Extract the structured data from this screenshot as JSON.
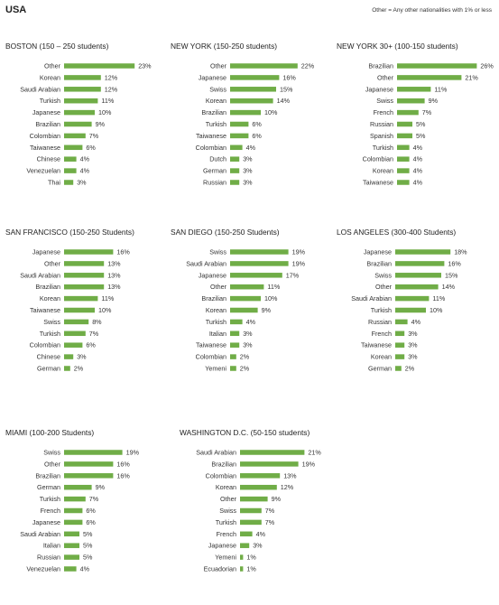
{
  "page": {
    "title": "USA",
    "note": "Other = Any other nationalities with 1% or less"
  },
  "chart_data": [
    {
      "type": "bar",
      "orientation": "horizontal",
      "title": "BOSTON (150 – 250 students)",
      "categories": [
        "Other",
        "Korean",
        "Saudi Arabian",
        "Turkish",
        "Japanese",
        "Brazilian",
        "Colombian",
        "Taiwanese",
        "Chinese",
        "Venezuelan",
        "Thai"
      ],
      "values": [
        23,
        12,
        12,
        11,
        10,
        9,
        7,
        6,
        4,
        4,
        3
      ],
      "unit": "%",
      "color": "#70ad47"
    },
    {
      "type": "bar",
      "orientation": "horizontal",
      "title": "NEW YORK (150-250 students)",
      "categories": [
        "Other",
        "Japanese",
        "Swiss",
        "Korean",
        "Brazilian",
        "Turkish",
        "Taiwanese",
        "Colombian",
        "Dutch",
        "German",
        "Russian"
      ],
      "values": [
        22,
        16,
        15,
        14,
        10,
        6,
        6,
        4,
        3,
        3,
        3
      ],
      "unit": "%",
      "color": "#70ad47"
    },
    {
      "type": "bar",
      "orientation": "horizontal",
      "title": "NEW YORK 30+ (100-150 students)",
      "categories": [
        "Brazilian",
        "Other",
        "Japanese",
        "Swiss",
        "French",
        "Russian",
        "Spanish",
        "Turkish",
        "Colombian",
        "Korean",
        "Taiwanese"
      ],
      "values": [
        26,
        21,
        11,
        9,
        7,
        5,
        5,
        4,
        4,
        4,
        4
      ],
      "unit": "%",
      "color": "#70ad47"
    },
    {
      "type": "bar",
      "orientation": "horizontal",
      "title": "SAN FRANCISCO (150-250 Students)",
      "categories": [
        "Japanese",
        "Other",
        "Saudi Arabian",
        "Brazilian",
        "Korean",
        "Taiwanese",
        "Swiss",
        "Turkish",
        "Colombian",
        "Chinese",
        "German"
      ],
      "values": [
        16,
        13,
        13,
        13,
        11,
        10,
        8,
        7,
        6,
        3,
        2
      ],
      "unit": "%",
      "color": "#70ad47"
    },
    {
      "type": "bar",
      "orientation": "horizontal",
      "title": "SAN DIEGO (150-250 Students)",
      "categories": [
        "Swiss",
        "Saudi Arabian",
        "Japanese",
        "Other",
        "Brazilian",
        "Korean",
        "Turkish",
        "Italian",
        "Taiwanese",
        "Colombian",
        "Yemeni"
      ],
      "values": [
        19,
        19,
        17,
        11,
        10,
        9,
        4,
        3,
        3,
        2,
        2
      ],
      "unit": "%",
      "color": "#70ad47"
    },
    {
      "type": "bar",
      "orientation": "horizontal",
      "title": "LOS ANGELES (300-400 Students)",
      "categories": [
        "Japanese",
        "Brazilian",
        "Swiss",
        "Other",
        "Saudi Arabian",
        "Turkish",
        "Russian",
        "French",
        "Taiwanese",
        "Korean",
        "German"
      ],
      "values": [
        18,
        16,
        15,
        14,
        11,
        10,
        4,
        3,
        3,
        3,
        2
      ],
      "unit": "%",
      "color": "#70ad47"
    },
    {
      "type": "bar",
      "orientation": "horizontal",
      "title": "MIAMI (100-200 Students)",
      "categories": [
        "Swiss",
        "Other",
        "Brazilian",
        "German",
        "Turkish",
        "French",
        "Japanese",
        "Saudi Arabian",
        "Italian",
        "Russian",
        "Venezuelan"
      ],
      "values": [
        19,
        16,
        16,
        9,
        7,
        6,
        6,
        5,
        5,
        5,
        4
      ],
      "unit": "%",
      "color": "#70ad47"
    },
    {
      "type": "bar",
      "orientation": "horizontal",
      "title": "WASHINGTON D.C. (50-150 students)",
      "categories": [
        "Saudi Arabian",
        "Brazilian",
        "Colombian",
        "Korean",
        "Other",
        "Swiss",
        "Turkish",
        "French",
        "Japanese",
        "Yemeni",
        "Ecuadorian"
      ],
      "values": [
        21,
        19,
        13,
        12,
        9,
        7,
        7,
        4,
        3,
        1,
        1
      ],
      "unit": "%",
      "color": "#70ad47"
    }
  ]
}
